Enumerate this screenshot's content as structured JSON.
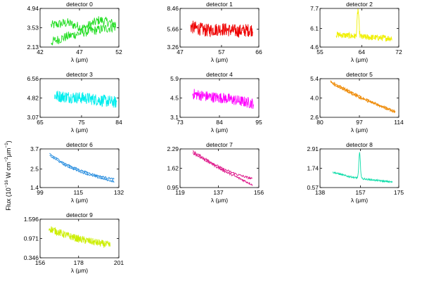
{
  "y_axis_label_parts": {
    "lead": "Flux (10",
    "exp1": "−16",
    "mid": " W cm",
    "exp2": "−2",
    "mid2": "μm",
    "exp3": "−1",
    "tail": ")"
  },
  "chart_data": [
    {
      "type": "line",
      "title": "detector 0",
      "xlabel": "λ (μm)",
      "color": "#22dd22",
      "xticks": [
        "42",
        "47",
        "52"
      ],
      "yticks": [
        "2.13",
        "3.53",
        "4.94"
      ],
      "xlim": [
        42,
        52
      ],
      "ylim": [
        2.13,
        4.94
      ],
      "xrange": [
        43.4,
        51.6
      ],
      "mode": "overlay",
      "series_a": [
        3.7,
        3.9,
        3.5,
        4.1,
        3.8
      ],
      "series_b": [
        2.5,
        2.9,
        3.2,
        3.4,
        3.6
      ],
      "noise": 0.35,
      "lines": 2
    },
    {
      "type": "line",
      "title": "detector 1",
      "xlabel": "λ (μm)",
      "color": "#ee0000",
      "xticks": [
        "47",
        "57",
        "66"
      ],
      "yticks": [
        "3.26",
        "5.66",
        "8.46"
      ],
      "xlim": [
        47,
        66
      ],
      "ylim": [
        3.26,
        8.46
      ],
      "xrange": [
        49.5,
        64.5
      ],
      "mode": "noisy",
      "series_a": [
        6.0,
        5.5,
        5.7,
        5.4,
        5.6
      ],
      "noise": 0.9
    },
    {
      "type": "line",
      "title": "detector 2",
      "xlabel": "λ (μm)",
      "color": "#f0f000",
      "xticks": [
        "55",
        "64",
        "72"
      ],
      "yticks": [
        "4.6",
        "6.1",
        "7.7"
      ],
      "xlim": [
        55,
        72
      ],
      "ylim": [
        4.6,
        7.7
      ],
      "xrange": [
        58.5,
        70.5
      ],
      "mode": "noisy",
      "series_a": [
        5.6,
        5.5,
        5.4,
        5.35,
        5.3
      ],
      "noise": 0.25,
      "peak": {
        "x": 63.2,
        "y": 7.6,
        "width": 0.25
      }
    },
    {
      "type": "line",
      "title": "detector 3",
      "xlabel": "λ (μm)",
      "color": "#00eeee",
      "xticks": [
        "65",
        "75",
        "84"
      ],
      "yticks": [
        "3.07",
        "4.82",
        "6.56"
      ],
      "xlim": [
        65,
        84
      ],
      "ylim": [
        3.07,
        6.56
      ],
      "xrange": [
        68.5,
        83.5
      ],
      "mode": "noisy",
      "series_a": [
        5.0,
        4.9,
        4.8,
        4.6,
        4.4
      ],
      "noise": 0.55
    },
    {
      "type": "line",
      "title": "detector 4",
      "xlabel": "λ (μm)",
      "color": "#ff00ff",
      "xticks": [
        "73",
        "84",
        "95"
      ],
      "yticks": [
        "3.1",
        "4.5",
        "5.9"
      ],
      "xlim": [
        73,
        95
      ],
      "ylim": [
        3.1,
        5.9
      ],
      "xrange": [
        76.5,
        93.5
      ],
      "mode": "noisy",
      "series_a": [
        4.8,
        4.6,
        4.5,
        4.3,
        4.1
      ],
      "noise": 0.4
    },
    {
      "type": "line",
      "title": "detector 5",
      "xlabel": "λ (μm)",
      "color": "#ee8800",
      "xticks": [
        "80",
        "97",
        "114"
      ],
      "yticks": [
        "2.6",
        "4.0",
        "5.4"
      ],
      "xlim": [
        80,
        114
      ],
      "ylim": [
        2.6,
        5.4
      ],
      "xrange": [
        84.5,
        112.5
      ],
      "mode": "overlay",
      "series_a": [
        5.2,
        4.6,
        4.0,
        3.5,
        3.0
      ],
      "series_b": [
        5.1,
        4.5,
        3.9,
        3.45,
        2.95
      ],
      "noise": 0.08,
      "lines": 2
    },
    {
      "type": "line",
      "title": "detector 6",
      "xlabel": "λ (μm)",
      "color": "#1e88dd",
      "xticks": [
        "99",
        "115",
        "132"
      ],
      "yticks": [
        "1.4",
        "2.5",
        "3.7"
      ],
      "xlim": [
        99,
        132
      ],
      "ylim": [
        1.4,
        3.7
      ],
      "xrange": [
        103,
        130
      ],
      "mode": "overlay",
      "series_a": [
        3.4,
        2.8,
        2.4,
        2.1,
        1.9
      ],
      "series_b": [
        3.3,
        2.7,
        2.3,
        2.0,
        1.75
      ],
      "noise": 0.05,
      "lines": 2
    },
    {
      "type": "line",
      "title": "detector 7",
      "xlabel": "λ (μm)",
      "color": "#dd1488",
      "xticks": [
        "119",
        "137",
        "156"
      ],
      "yticks": [
        "0.95",
        "1.62",
        "2.29"
      ],
      "xlim": [
        119,
        156
      ],
      "ylim": [
        0.95,
        2.29
      ],
      "xrange": [
        125,
        153
      ],
      "mode": "overlay",
      "series_a": [
        2.2,
        1.9,
        1.6,
        1.4,
        1.25
      ],
      "series_b": [
        2.15,
        1.85,
        1.55,
        1.3,
        1.05
      ],
      "noise": 0.04,
      "lines": 2
    },
    {
      "type": "line",
      "title": "detector 8",
      "xlabel": "λ (μm)",
      "color": "#11ddaa",
      "xticks": [
        "138",
        "157",
        "175"
      ],
      "yticks": [
        "0.57",
        "1.74",
        "2.91"
      ],
      "xlim": [
        138,
        175
      ],
      "ylim": [
        0.57,
        2.91
      ],
      "xrange": [
        144,
        172
      ],
      "mode": "noisy",
      "series_a": [
        1.5,
        1.25,
        1.1,
        1.0,
        0.9
      ],
      "noise": 0.05,
      "peak": {
        "x": 156.6,
        "y": 2.7,
        "width": 0.5
      }
    },
    {
      "type": "line",
      "title": "detector 9",
      "xlabel": "λ (μm)",
      "color": "#ccee00",
      "xticks": [
        "156",
        "178",
        "201"
      ],
      "yticks": [
        "0.346",
        "0.971",
        "1.596"
      ],
      "xlim": [
        156,
        201
      ],
      "ylim": [
        0.346,
        1.596
      ],
      "xrange": [
        161,
        196
      ],
      "mode": "noisy",
      "series_a": [
        1.3,
        1.1,
        0.95,
        0.85,
        0.75
      ],
      "noise": 0.12
    }
  ]
}
